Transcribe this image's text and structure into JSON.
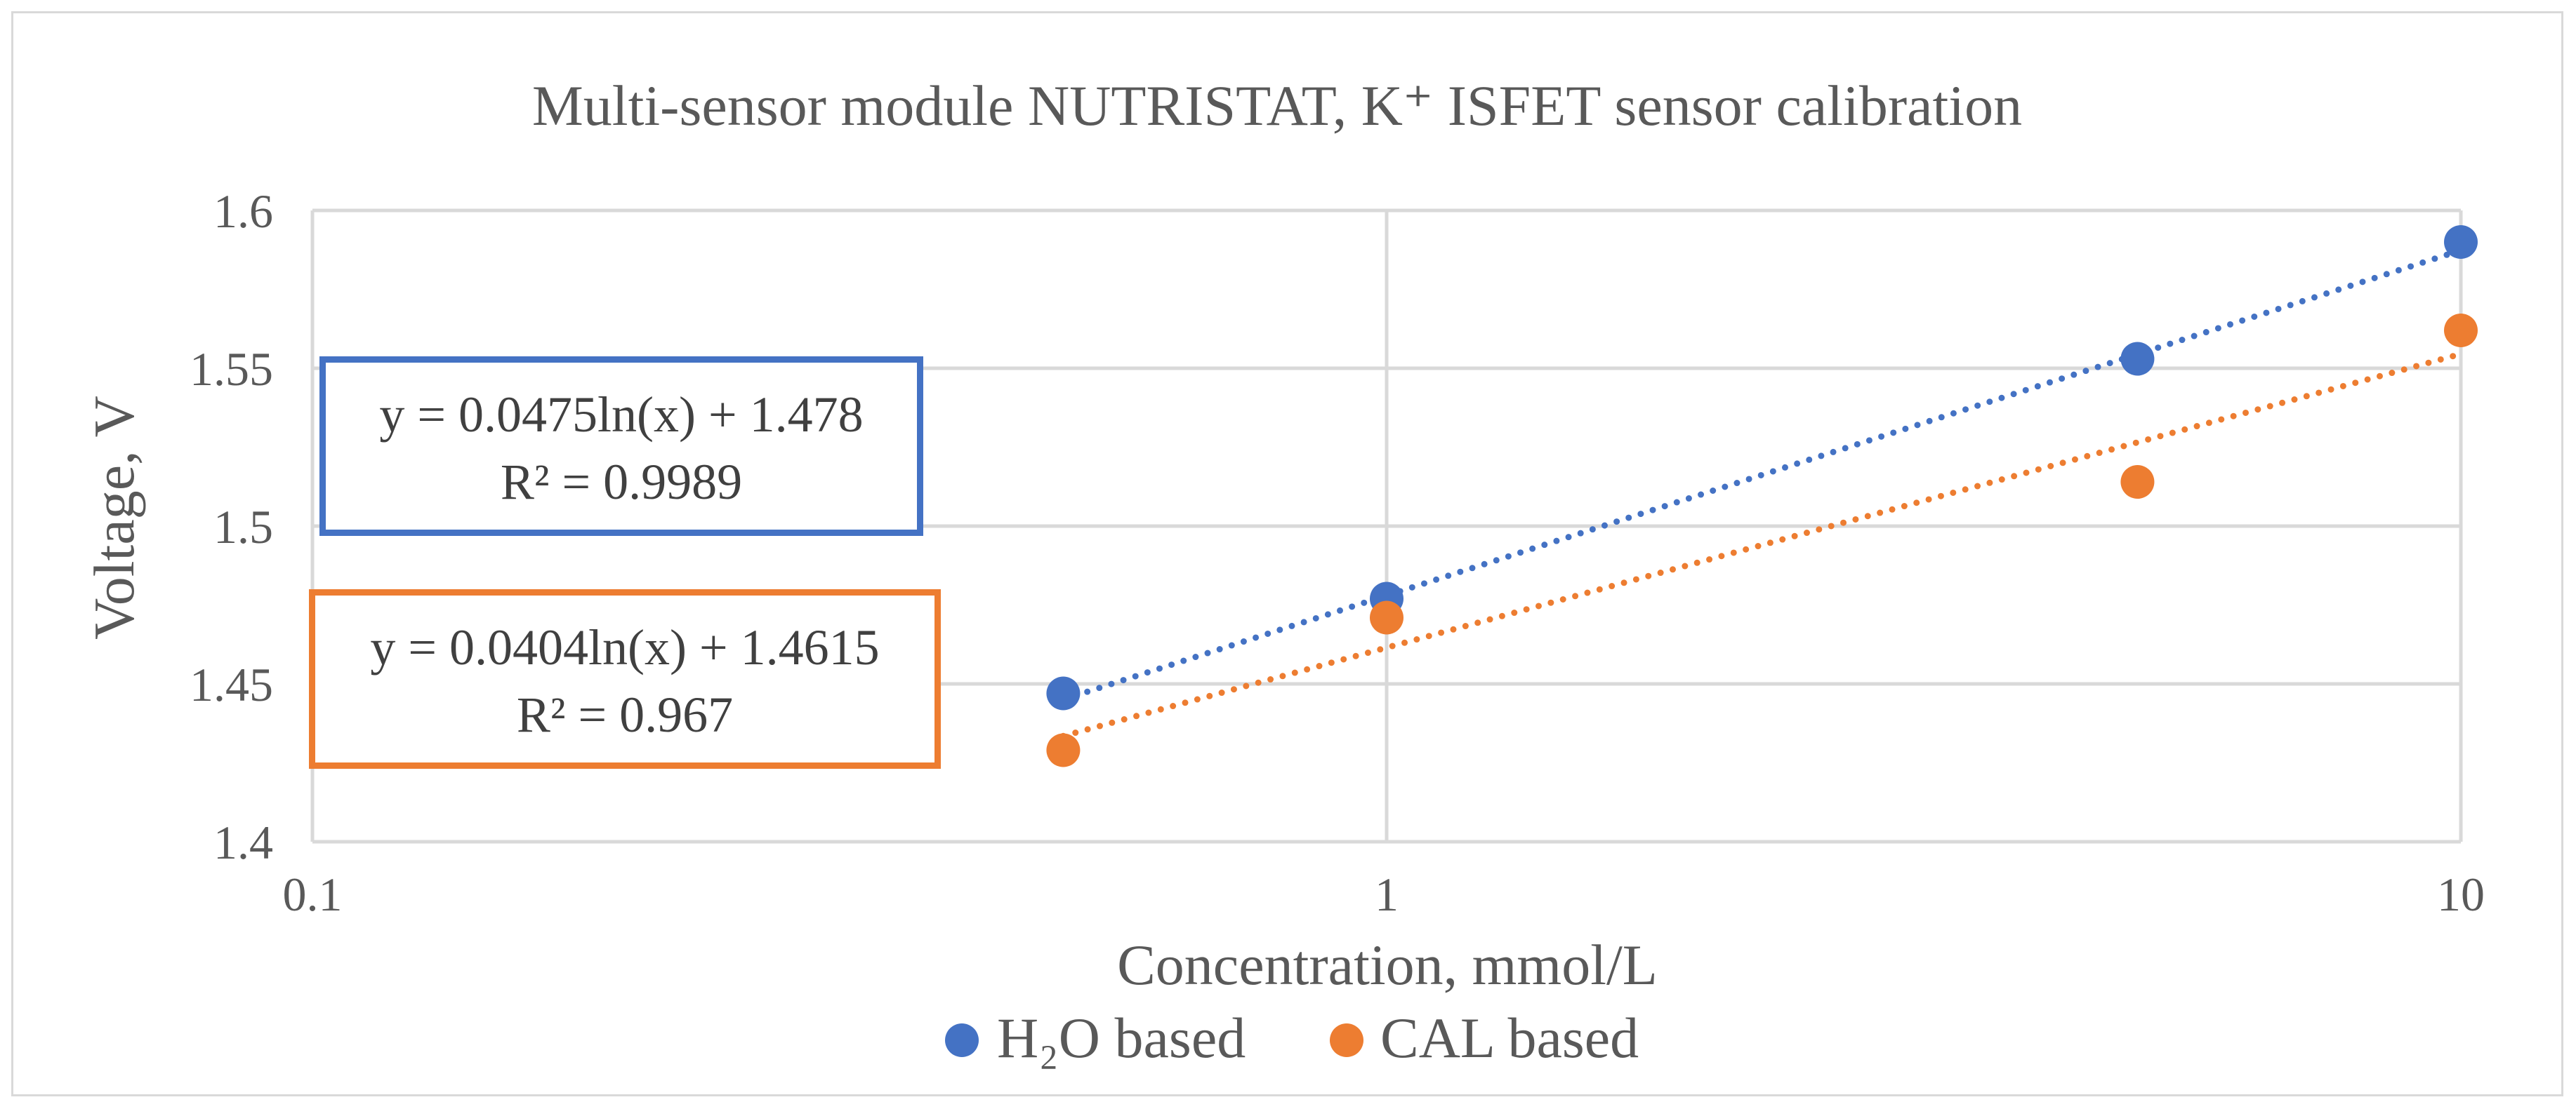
{
  "chart_data": {
    "type": "scatter",
    "title": "Multi-sensor module NUTRISTAT, K⁺ ISFET sensor calibration",
    "xlabel": "Concentration, mmol/L",
    "ylabel": "Voltage, V",
    "xscale": "log",
    "xlim": [
      0.1,
      10
    ],
    "ylim": [
      1.4,
      1.6
    ],
    "xticks": [
      0.1,
      1,
      10
    ],
    "xtick_labels": [
      "0.1",
      "1",
      "10"
    ],
    "yticks": [
      1.4,
      1.45,
      1.5,
      1.55,
      1.6
    ],
    "ytick_labels": [
      "1.4",
      "1.45",
      "1.5",
      "1.55",
      "1.6"
    ],
    "grid": true,
    "legend": "bottom",
    "series": [
      {
        "name": "H₂O based",
        "legend_label": "H₂O based",
        "color": "#4472c4",
        "x": [
          0.5,
          1,
          5,
          10
        ],
        "y": [
          1.447,
          1.477,
          1.553,
          1.59
        ],
        "trendline": {
          "type": "logarithmic",
          "a": 0.0475,
          "b": 1.478,
          "x_range": [
            0.5,
            10
          ],
          "equation": "y = 0.0475ln(x) + 1.478",
          "r2": "R² = 0.9989"
        }
      },
      {
        "name": "CAL based",
        "legend_label": "CAL based",
        "color": "#ed7d31",
        "x": [
          0.5,
          1,
          5,
          10
        ],
        "y": [
          1.429,
          1.471,
          1.514,
          1.562
        ],
        "trendline": {
          "type": "logarithmic",
          "a": 0.0404,
          "b": 1.4615,
          "x_range": [
            0.5,
            10
          ],
          "equation": "y = 0.0404ln(x) + 1.4615",
          "r2": "R² = 0.967"
        }
      }
    ]
  }
}
